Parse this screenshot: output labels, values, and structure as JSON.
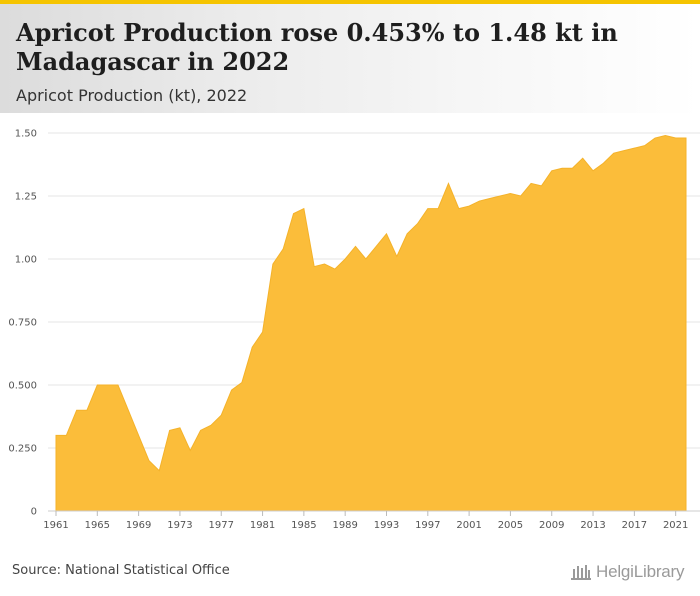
{
  "header": {
    "title": "Apricot Production rose 0.453% to 1.48 kt in Madagascar in 2022",
    "subtitle": "Apricot Production (kt), 2022"
  },
  "footer": {
    "source": "Source: National Statistical Office",
    "brand": "HelgiLibrary"
  },
  "colors": {
    "accent": "#f5c400",
    "area_fill": "#fbbd3a",
    "grid": "#e6e6e6"
  },
  "chart_data": {
    "type": "area",
    "title": "Apricot Production (kt), 2022",
    "x": [
      1961,
      1962,
      1963,
      1964,
      1965,
      1966,
      1967,
      1968,
      1969,
      1970,
      1971,
      1972,
      1973,
      1974,
      1975,
      1976,
      1977,
      1978,
      1979,
      1980,
      1981,
      1982,
      1983,
      1984,
      1985,
      1986,
      1987,
      1988,
      1989,
      1990,
      1991,
      1992,
      1993,
      1994,
      1995,
      1996,
      1997,
      1998,
      1999,
      2000,
      2001,
      2002,
      2003,
      2004,
      2005,
      2006,
      2007,
      2008,
      2009,
      2010,
      2011,
      2012,
      2013,
      2014,
      2015,
      2016,
      2017,
      2018,
      2019,
      2020,
      2021,
      2022
    ],
    "values": [
      0.3,
      0.3,
      0.4,
      0.4,
      0.5,
      0.5,
      0.5,
      0.4,
      0.3,
      0.2,
      0.16,
      0.32,
      0.33,
      0.24,
      0.32,
      0.34,
      0.38,
      0.48,
      0.51,
      0.65,
      0.71,
      0.98,
      1.04,
      1.18,
      1.2,
      0.97,
      0.98,
      0.96,
      1.0,
      1.05,
      1.0,
      1.05,
      1.1,
      1.01,
      1.1,
      1.14,
      1.2,
      1.2,
      1.3,
      1.2,
      1.21,
      1.23,
      1.24,
      1.25,
      1.26,
      1.25,
      1.3,
      1.29,
      1.35,
      1.36,
      1.36,
      1.4,
      1.35,
      1.38,
      1.42,
      1.43,
      1.44,
      1.45,
      1.48,
      1.49,
      1.48,
      1.48
    ],
    "x_ticks": [
      "1961",
      "1965",
      "1969",
      "1973",
      "1977",
      "1981",
      "1985",
      "1989",
      "1993",
      "1997",
      "2001",
      "2005",
      "2009",
      "2013",
      "2017",
      "2021"
    ],
    "y_ticks": [
      "0",
      "0.250",
      "0.500",
      "0.750",
      "1.00",
      "1.25",
      "1.50"
    ],
    "ylim": [
      0,
      1.5
    ],
    "xlabel": "",
    "ylabel": "",
    "grid": true,
    "legend": "none"
  }
}
